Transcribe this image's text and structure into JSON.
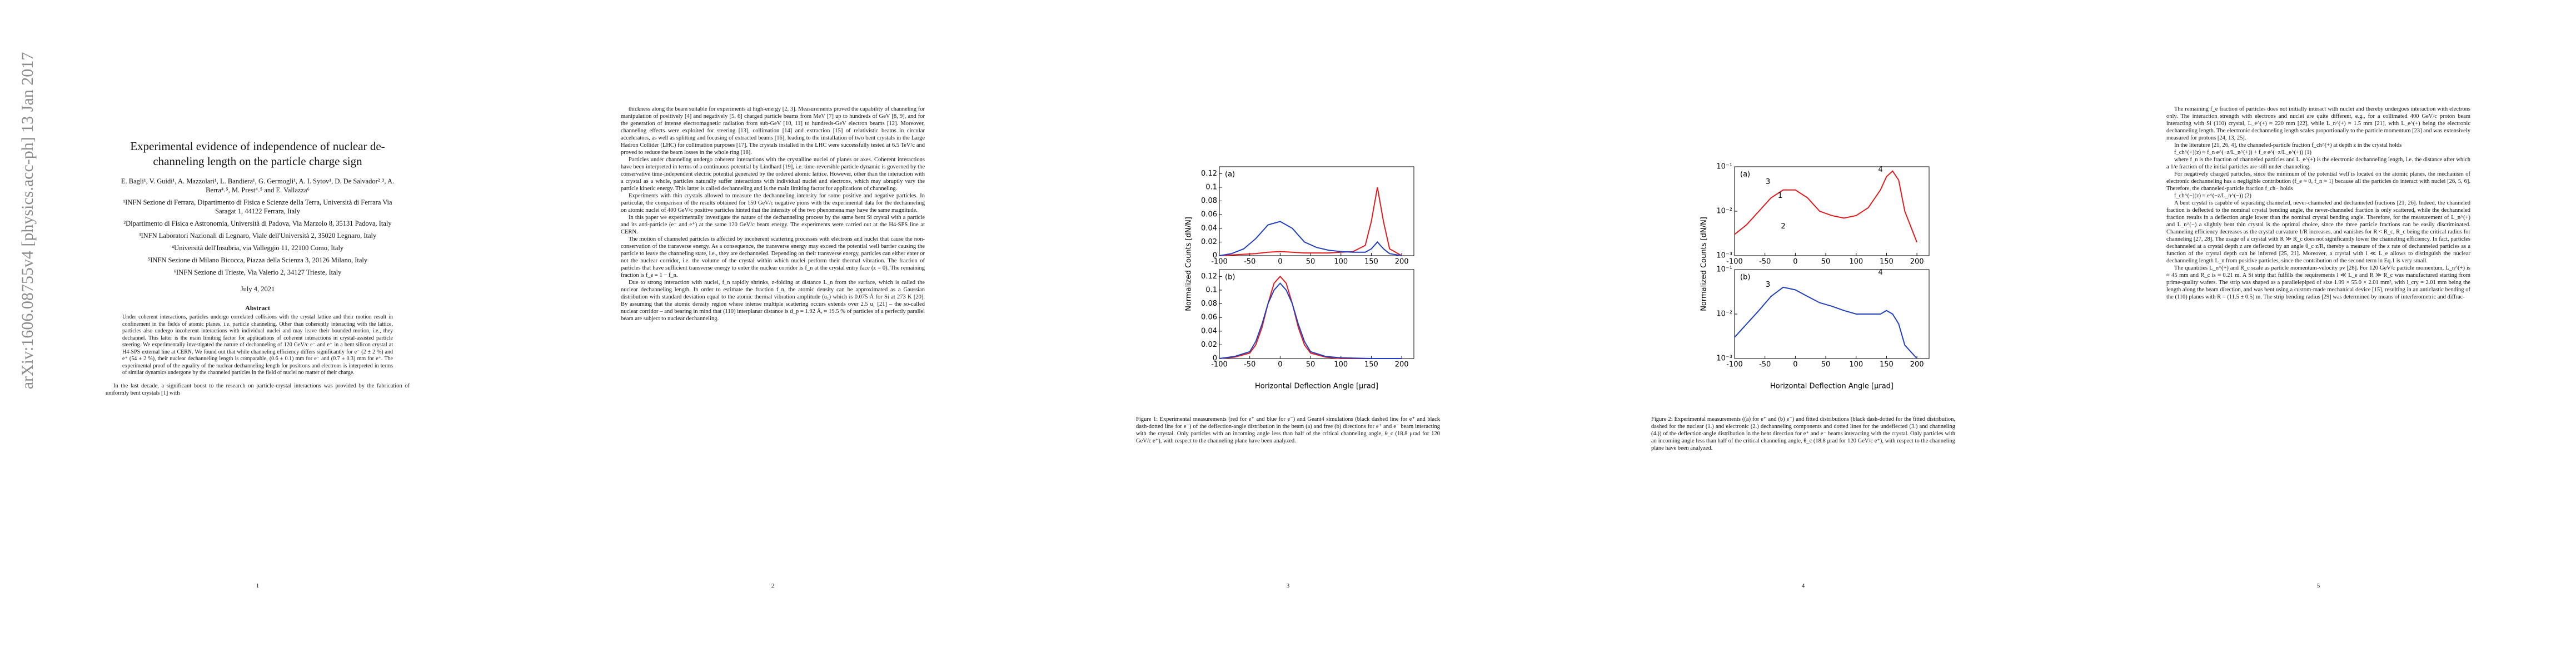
{
  "stamp": "arXiv:1606.08755v4 [physics.acc-ph] 13 Jan 2017",
  "pages": [
    {
      "title": "Experimental evidence of independence of nuclear de-channeling length on the particle charge sign",
      "authors": "E. Bagli¹, V. Guidi¹, A. Mazzolari¹, L. Bandiera¹, G. Germogli¹, A. I. Sytov¹, D. De Salvador²˒³, A. Berra⁴˒⁵, M. Prest⁴˒⁵ and E. Vallazza⁶",
      "affiliations": [
        "¹INFN Sezione di Ferrara, Dipartimento di Fisica e Scienze della Terra, Università di Ferrara Via Saragat 1, 44122 Ferrara, Italy",
        "²Dipartimento di Fisica e Astronomia, Università di Padova, Via Marzolo 8, 35131 Padova, Italy",
        "³INFN Laboratori Nazionali di Legnaro, Viale dell'Università 2, 35020 Legnaro, Italy",
        "⁴Università dell'Insubria, via Valleggio 11, 22100 Como, Italy",
        "⁵INFN Sezione di Milano Bicocca, Piazza della Scienza 3, 20126 Milano, Italy",
        "⁶INFN Sezione di Trieste, Via Valerio 2, 34127 Trieste, Italy"
      ],
      "date": "July 4, 2021",
      "abstract_heading": "Abstract",
      "abstract": "Under coherent interactions, particles undergo correlated collisions with the crystal lattice and their motion result in confinement in the fields of atomic planes, i.e. particle channeling. Other than coherently interacting with the lattice, particles also undergo incoherent interactions with individual nuclei and may leave their bounded motion, i.e., they dechannel. This latter is the main limiting factor for applications of coherent interactions in crystal-assisted particle steering. We experimentally investigated the nature of dechanneling of 120 GeV/c e⁻ and e⁺ in a bent silicon crystal at H4-SPS external line at CERN. We found out that while channeling efficiency differs significantly for e⁻ (2 ± 2 %) and e⁺ (54 ± 2 %), their nuclear dechanneling length is comparable, (0.6 ± 0.1) mm for e⁻ and (0.7 ± 0.3) mm for e⁺. The experimental proof of the equality of the nuclear dechanneling length for positrons and electrons is interpreted in terms of similar dynamics undergone by the channeled particles in the field of nuclei no matter of their charge.",
      "body": [
        "In the last decade, a significant boost to the research on particle-crystal interactions was provided by the fabrication of uniformly bent crystals [1] with"
      ],
      "number": "1"
    },
    {
      "body": [
        "thickness along the beam suitable for experiments at high-energy [2, 3]. Measurements proved the capability of channeling for manipulation of positively [4] and negatively [5, 6] charged particle beams from MeV [7] up to hundreds of GeV [8, 9], and for the generation of intense electromagnetic radiation from sub-GeV [10, 11] to hundreds-GeV electron beams [12]. Moreover, channeling effects were exploited for steering [13], collimation [14] and extraction [15] of relativistic beams in circular accelerators, as well as splitting and focusing of extracted beams [16], leading to the installation of two bent crystals in the Large Hadron Collider (LHC) for collimation purposes [17]. The crystals installed in the LHC were successfully tested at 6.5 TeV/c and proved to reduce the beam losses in the whole ring [18].",
        "Particles under channeling undergo coherent interactions with the crystalline nuclei of planes or axes. Coherent interactions have been interpreted in terms of a continuous potential by Lindhard [19], i.e. time-reversible particle dynamic is governed by the conservative time-independent electric potential generated by the ordered atomic lattice. However, other than the interaction with a crystal as a whole, particles naturally suffer interactions with individual nuclei and electrons, which may abruptly vary the particle kinetic energy. This latter is called dechanneling and is the main limiting factor for applications of channeling.",
        "Experiments with thin crystals allowed to measure the dechanneling intensity for some positive and negative particles. In particular, the comparison of the results obtained for 150 GeV/c negative pions with the experimental data for the dechanneling on atomic nuclei of 400 GeV/c positive particles hinted that the intensity of the two phenomena may have the same magnitude.",
        "In this paper we experimentally investigate the nature of the dechanneling process by the same bent Si crystal with a particle and its anti-particle (e⁻ and e⁺) at the same 120 GeV/c beam energy. The experiments were carried out at the H4-SPS line at CERN.",
        "The motion of channeled particles is affected by incoherent scattering processes with electrons and nuclei that cause the non-conservation of the transverse energy. As a consequence, the transverse energy may exceed the potential well barrier causing the particle to leave the channeling state, i.e., they are dechanneled. Depending on their transverse energy, particles can either enter or not the nuclear corridor, i.e. the volume of the crystal within which nuclei perform their thermal vibration. The fraction of particles that have sufficient transverse energy to enter the nuclear corridor is f_n at the crystal entry face (z = 0). The remaining fraction is f_e = 1 − f_n.",
        "Due to strong interaction with nuclei, f_n rapidly shrinks, z-folding at distance L_n from the surface, which is called the nuclear dechanneling length. In order to estimate the fraction f_n, the atomic density can be approximated as a Gaussian distribution with standard deviation equal to the atomic thermal vibration amplitude (u₁) which is 0.075 Å for Si at 273 K [20]. By assuming that the atomic density region where intense multiple scattering occurs extends over 2.5 u₁ [21] – the so-called nuclear corridor – and bearing in mind that (110) interplanar distance is d_p = 1.92 Å, ≈ 19.5 % of particles of a perfectly parallel beam are subject to nuclear dechanneling."
      ],
      "number": "2"
    },
    {
      "caption": "Figure 1: Experimental measurements (red for e⁺ and blue for e⁻) and Geant4 simulations (black dashed line for e⁺ and black dash-dotted line for e⁻) of the deflection-angle distribution in the beam (a) and free (b) directions for e⁺ and e⁻ beam interacting with the crystal. Only particles with an incoming angle less than half of the critical channeling angle, θ_c (18.8 μrad for 120 GeV/c e⁺), with respect to the channeling plane have been analyzed.",
      "number": "3"
    },
    {
      "caption": "Figure 2: Experimental measurements ((a) for e⁺ and (b) e⁻) and fitted distributions (black dash-dotted for the fitted distribution, dashed for the nuclear (1.) and electronic (2.) dechanneling components and dotted lines for the undeflected (3.) and channeling (4.)) of the deflection-angle distribution in the bent direction for e⁺ and e⁻ beams interacting with the crystal. Only particles with an incoming angle less than half of the critical channeling angle, θ_c (18.8 μrad for 120 GeV/c e⁺), with respect to the channeling plane have been analyzed.",
      "number": "4"
    },
    {
      "body": [
        "The remaining f_e fraction of particles does not initially interact with nuclei and thereby undergoes interaction with electrons only. The interaction strength with electrons and nuclei are quite different, e.g., for a collimated 400 GeV/c proton beam interacting with Si (110) crystal, L_e^(+) ≈ 220 mm [22], while L_n^(+) ≈ 1.5 mm [21], with L_e^(+) being the electronic dechanneling length. The electronic dechanneling length scales proportionally to the particle momentum [23] and was extensively measured for protons [24, 13, 25].",
        "In the literature [21, 26, 4], the channeled-particle fraction f_ch^(+) at depth z in the crystal holds",
        "f_ch^(+)(z) ≈ f_n e^(−z/L_n^(+)) + f_e e^(−z/L_e^(+))          (1)",
        "where f_n is the fraction of channeled particles and L_e^(+) is the electronic dechanneling length, i.e. the distance after which a 1/e fraction of the initial particles are still under channeling.",
        "For negatively charged particles, since the minimum of the potential well is located on the atomic planes, the mechanism of electronic dechanneling has a negligible contribution (f_e ≈ 0, f_n ≈ 1) because all the particles do interact with nuclei [26, 5, 6]. Therefore, the channeled-particle fraction f_ch− holds",
        "f_ch^(−)(z) ≈ e^(−z/L_n^(−))          (2)",
        "A bent crystal is capable of separating channeled, never-channeled and dechanneled fractions [21, 26]. Indeed, the channeled fraction is deflected to the nominal crystal bending angle, the never-channeled fraction is only scattered, while the dechanneled fraction results in a deflection angle lower than the nominal crystal bending angle. Therefore, for the measurement of L_n^(+) and L_n^(−) a slightly bent thin crystal is the optimal choice, since the three particle fractions can be easily discriminated. Channeling efficiency decreases as the crystal curvature 1/R increases, and vanishes for R < R_c, R_c being the critical radius for channeling [27, 28]. The usage of a crystal with R ≫ R_c does not significantly lower the channeling efficiency. In fact, particles dechanneled at a crystal depth z are deflected by an angle θ_c z/R, thereby a measure of the z rate of dechanneled particles as a function of the crystal depth can be inferred [25, 21]. Moreover, a crystal with l ≪ L_e allows to distinguish the nuclear dechanneling length L_n from positive particles, since the contribution of the second term in Eq.1 is very small.",
        "The quantities L_n^(+) and R_c scale as particle momentum-velocity pv [28]. For 120 GeV/c particle momentum, L_n^(+) is ≈ 45 mm and R_c is ≈ 0.21 m. A Si strip that fulfills the requirements l ≪ L_e and R ≫ R_c was manufactured starting from prime-quality wafers. The strip was shaped as a parallelepiped of size 1.99 × 55.0 × 2.01 mm³, with l_cry = 2.01 mm being the length along the beam direction, and was bent using a custom-made mechanical device [15], resulting in an anticlastic bending of the (110) planes with R = (11.5 ± 0.5) m. The strip bending radius [29] was determined by means of interferometric and diffrac-"
      ],
      "number": "5"
    }
  ],
  "figures": [
    {
      "page": 2,
      "xlabel": "Horizontal Deflection Angle [μrad]",
      "ylabel": "Normalized Counts [dN/N]",
      "panels": [
        {
          "label": "(a)",
          "xlim": [
            -100,
            220
          ],
          "ylim": [
            0,
            0.13
          ],
          "xticks": [
            -100,
            -50,
            0,
            50,
            100,
            150,
            200
          ],
          "yticks": [
            0,
            0.02,
            0.04,
            0.06,
            0.08,
            0.1,
            0.12
          ],
          "x": [
            -100,
            -80,
            -60,
            -40,
            -20,
            0,
            20,
            40,
            60,
            80,
            100,
            120,
            140,
            150,
            160,
            170,
            180,
            200
          ],
          "series": [
            {
              "color": "#e31a1c",
              "values": [
                0,
                0.001,
                0.002,
                0.003,
                0.005,
                0.006,
                0.005,
                0.004,
                0.004,
                0.004,
                0.005,
                0.006,
                0.015,
                0.05,
                0.1,
                0.05,
                0.01,
                0
              ]
            },
            {
              "color": "#1f3fbf",
              "values": [
                0,
                0.003,
                0.01,
                0.025,
                0.045,
                0.05,
                0.04,
                0.02,
                0.012,
                0.008,
                0.006,
                0.005,
                0.005,
                0.01,
                0.02,
                0.01,
                0.003,
                0
              ]
            }
          ]
        },
        {
          "label": "(b)",
          "xlim": [
            -100,
            220
          ],
          "ylim": [
            0,
            0.13
          ],
          "xticks": [
            -100,
            -50,
            0,
            50,
            100,
            150,
            200
          ],
          "yticks": [
            0,
            0.02,
            0.04,
            0.06,
            0.08,
            0.1,
            0.12
          ],
          "x": [
            -100,
            -75,
            -50,
            -40,
            -30,
            -20,
            -10,
            0,
            10,
            20,
            30,
            40,
            50,
            75,
            100,
            150,
            200
          ],
          "series": [
            {
              "color": "#e31a1c",
              "values": [
                0,
                0.002,
                0.008,
                0.02,
                0.045,
                0.08,
                0.11,
                0.12,
                0.11,
                0.08,
                0.045,
                0.02,
                0.008,
                0.002,
                0,
                0,
                0
              ]
            },
            {
              "color": "#1f3fbf",
              "values": [
                0,
                0.003,
                0.01,
                0.025,
                0.05,
                0.08,
                0.1,
                0.11,
                0.1,
                0.08,
                0.05,
                0.025,
                0.01,
                0.003,
                0.001,
                0,
                0
              ]
            }
          ]
        }
      ]
    },
    {
      "page": 3,
      "xlabel": "Horizontal Deflection Angle [μrad]",
      "ylabel": "Normalized Counts [dN/N]",
      "panels": [
        {
          "label": "(a)",
          "log": true,
          "xlim": [
            -100,
            220
          ],
          "ylim": [
            0.001,
            0.1
          ],
          "xticks": [
            -100,
            -50,
            0,
            50,
            100,
            150,
            200
          ],
          "yticks": [
            {
              "value": 0.001,
              "label": "10⁻³"
            },
            {
              "value": 0.01,
              "label": "10⁻²"
            },
            {
              "value": 0.1,
              "label": "10⁻¹"
            }
          ],
          "annotations": [
            "1",
            "2",
            "3",
            "4"
          ],
          "x": [
            -100,
            -80,
            -60,
            -40,
            -20,
            0,
            20,
            40,
            60,
            80,
            100,
            120,
            140,
            150,
            160,
            170,
            180,
            200
          ],
          "series": [
            {
              "color": "#e31a1c",
              "values": [
                0.003,
                0.005,
                0.01,
                0.02,
                0.03,
                0.03,
                0.02,
                0.01,
                0.008,
                0.007,
                0.008,
                0.012,
                0.03,
                0.06,
                0.08,
                0.05,
                0.01,
                0.002
              ]
            }
          ]
        },
        {
          "label": "(b)",
          "log": true,
          "xlim": [
            -100,
            220
          ],
          "ylim": [
            0.001,
            0.1
          ],
          "xticks": [
            -100,
            -50,
            0,
            50,
            100,
            150,
            200
          ],
          "yticks": [
            {
              "value": 0.001,
              "label": "10⁻³"
            },
            {
              "value": 0.01,
              "label": "10⁻²"
            },
            {
              "value": 0.1,
              "label": "10⁻¹"
            }
          ],
          "annotations": [
            "3",
            "4"
          ],
          "x": [
            -100,
            -80,
            -60,
            -40,
            -20,
            0,
            20,
            40,
            60,
            80,
            100,
            120,
            140,
            150,
            160,
            170,
            180,
            200
          ],
          "series": [
            {
              "color": "#1f3fbf",
              "values": [
                0.003,
                0.006,
                0.012,
                0.025,
                0.04,
                0.035,
                0.025,
                0.018,
                0.015,
                0.012,
                0.01,
                0.01,
                0.01,
                0.012,
                0.01,
                0.006,
                0.002,
                0.001
              ]
            }
          ]
        }
      ]
    }
  ]
}
